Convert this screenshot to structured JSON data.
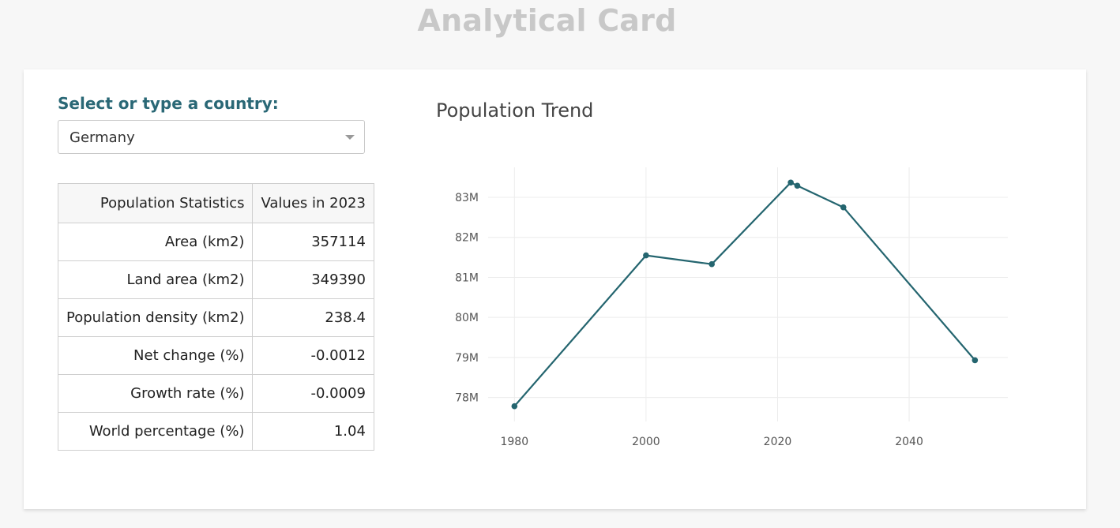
{
  "page": {
    "title": "Analytical Card"
  },
  "selector": {
    "label": "Select or type a country:",
    "selected": "Germany"
  },
  "stats_table": {
    "headers": [
      "Population Statistics",
      "Values in 2023"
    ],
    "rows": [
      {
        "label": "Area (km2)",
        "value": "357114"
      },
      {
        "label": "Land area (km2)",
        "value": "349390"
      },
      {
        "label": "Population density (km2)",
        "value": "238.4"
      },
      {
        "label": "Net change (%)",
        "value": "-0.0012"
      },
      {
        "label": "Growth rate (%)",
        "value": "-0.0009"
      },
      {
        "label": "World percentage (%)",
        "value": "1.04"
      }
    ]
  },
  "chart_data": {
    "type": "line",
    "title": "Population Trend",
    "xlabel": "",
    "ylabel": "",
    "x": [
      1980,
      2000,
      2010,
      2022,
      2023,
      2030,
      2050
    ],
    "series": [
      {
        "values": [
          77.78,
          81.55,
          81.33,
          83.37,
          83.29,
          82.75,
          78.93
        ]
      }
    ],
    "xticks": [
      1980,
      2000,
      2020,
      2040
    ],
    "xtick_labels": [
      "1980",
      "2000",
      "2020",
      "2040"
    ],
    "yticks": [
      78,
      79,
      80,
      81,
      82,
      83
    ],
    "ytick_labels": [
      "78M",
      "79M",
      "80M",
      "81M",
      "82M",
      "83M"
    ],
    "xlim": [
      1976,
      2055
    ],
    "ylim": [
      77.4,
      83.75
    ],
    "grid": true,
    "color": "#24656f"
  }
}
